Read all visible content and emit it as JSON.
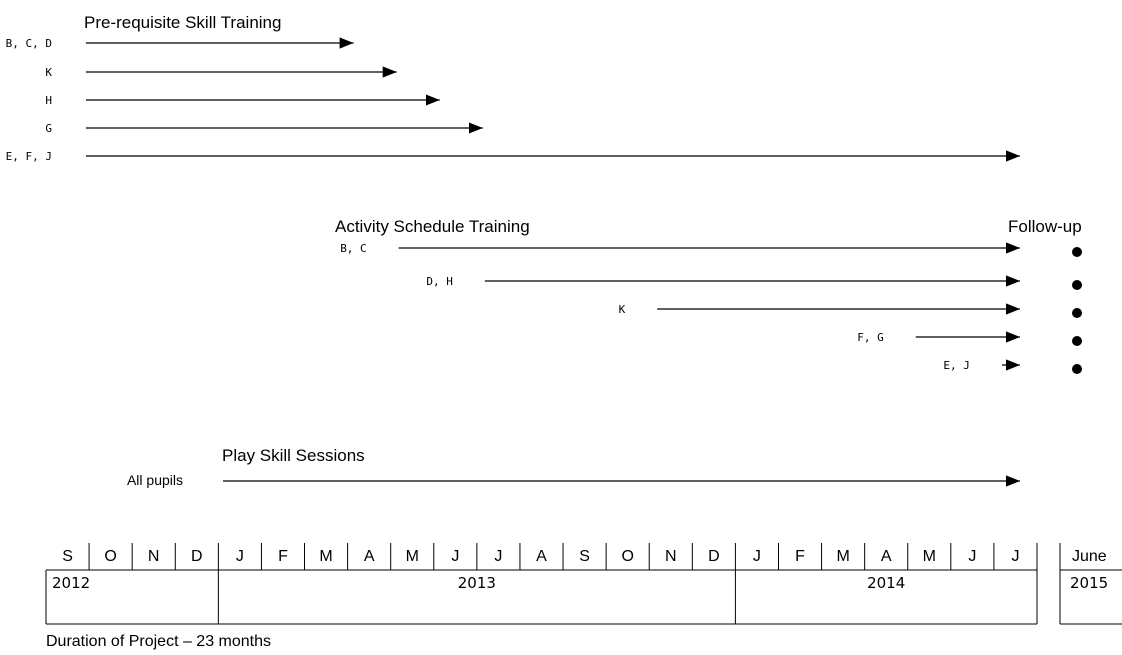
{
  "prerequisite": {
    "title": "Pre-requisite Skill Training",
    "rows": [
      {
        "label": "B, C, D",
        "end_month": 7
      },
      {
        "label": "K",
        "end_month": 8
      },
      {
        "label": "H",
        "end_month": 9
      },
      {
        "label": "G",
        "end_month": 10
      },
      {
        "label": "E, F, J",
        "end_month": 23
      }
    ]
  },
  "activity": {
    "title": "Activity Schedule Training",
    "followup_title": "Follow-up",
    "rows": [
      {
        "label": "B, C",
        "start_month": 8,
        "end_month": 23
      },
      {
        "label": "D, H",
        "start_month": 10,
        "end_month": 23
      },
      {
        "label": "K",
        "start_month": 14,
        "end_month": 23
      },
      {
        "label": "F, G",
        "start_month": 20,
        "end_month": 23
      },
      {
        "label": "E, J",
        "start_month": 22,
        "end_month": 23
      }
    ]
  },
  "play": {
    "title": "Play Skill Sessions",
    "label": "All pupils",
    "start_month": 5,
    "end_month": 23
  },
  "timeline": {
    "months": [
      "S",
      "O",
      "N",
      "D",
      "J",
      "F",
      "M",
      "A",
      "M",
      "J",
      "J",
      "A",
      "S",
      "O",
      "N",
      "D",
      "J",
      "F",
      "M",
      "A",
      "M",
      "J",
      "J"
    ],
    "years": [
      {
        "label": "2012",
        "months": 4
      },
      {
        "label": "2013",
        "months": 12
      },
      {
        "label": "2014",
        "months": 7
      }
    ],
    "extra_month": "June",
    "extra_year": "2015"
  },
  "duration": "Duration of Project – 23 months"
}
